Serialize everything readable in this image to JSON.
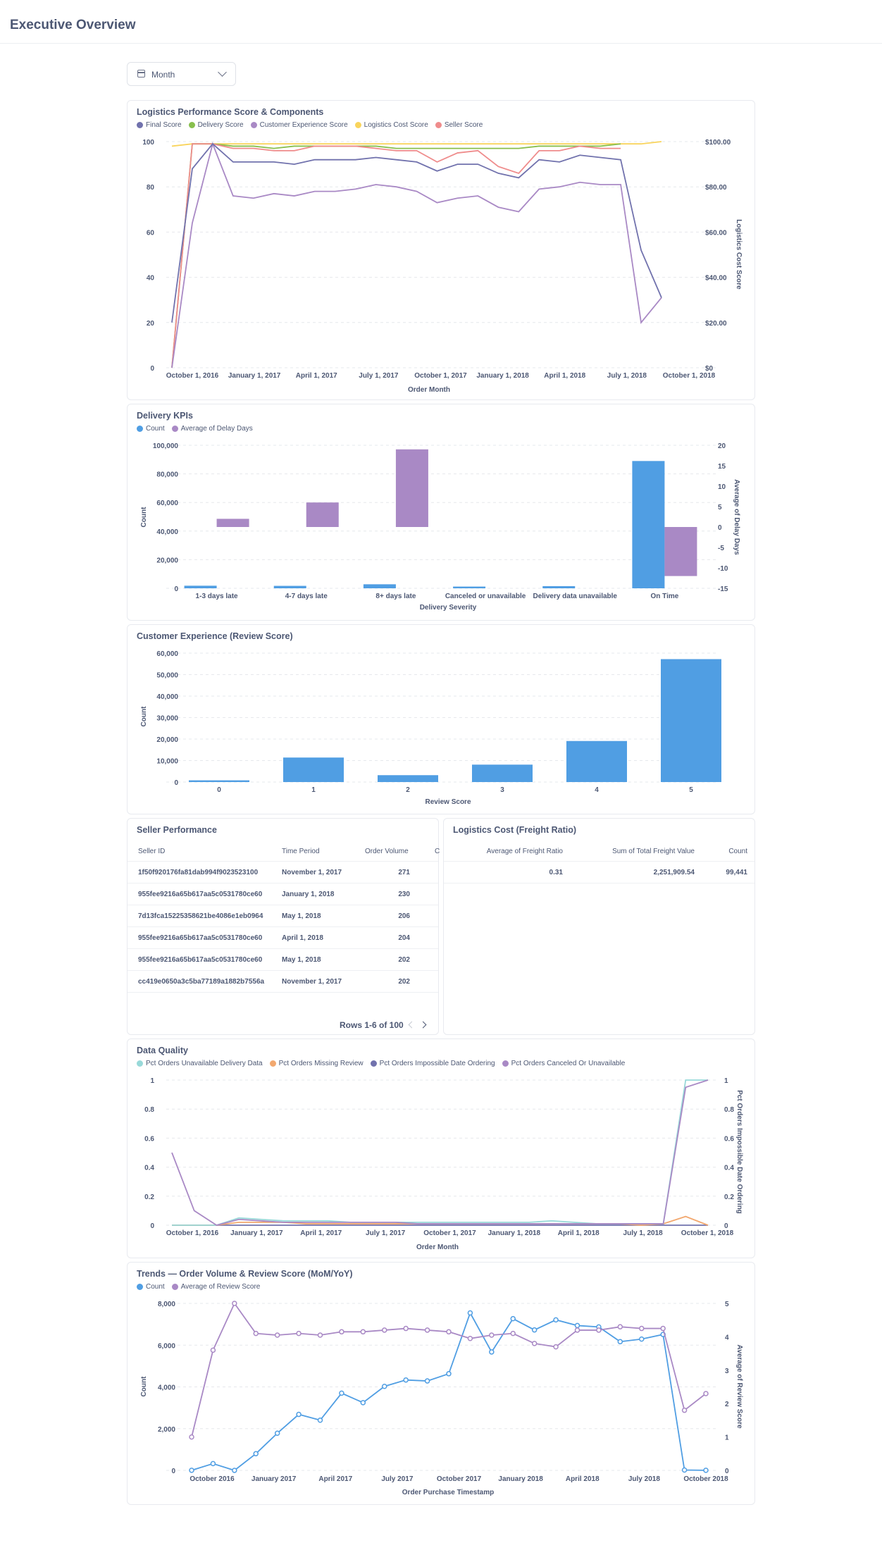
{
  "page": {
    "title": "Executive Overview"
  },
  "filter": {
    "label": "Month",
    "icon": "calendar-icon"
  },
  "colors": {
    "purple": "#a989c5",
    "navy": "#7172ad",
    "green": "#88bf4d",
    "yellow": "#f9d45c",
    "orange": "#ef8c8c",
    "blue": "#509ee3",
    "teal": "#98d9d9",
    "peach": "#f2a86f"
  },
  "logistics": {
    "title": "Logistics Performance Score & Components",
    "legend": [
      "Final Score",
      "Delivery Score",
      "Customer Experience Score",
      "Logistics Cost Score",
      "Seller Score"
    ],
    "x_label": "Order Month",
    "y_right_label": "Logistics Cost Score",
    "y_left_ticks": [
      "0",
      "20",
      "40",
      "60",
      "80",
      "100"
    ],
    "y_right_ticks": [
      "$0",
      "$20.00",
      "$40.00",
      "$60.00",
      "$80.00",
      "$100.00"
    ],
    "x_ticks": [
      "October 1, 2016",
      "January 1, 2017",
      "April 1, 2017",
      "July 1, 2017",
      "October 1, 2017",
      "January 1, 2018",
      "April 1, 2018",
      "July 1, 2018",
      "October 1, 2018"
    ]
  },
  "delivery": {
    "title": "Delivery KPIs",
    "legend": [
      "Count",
      "Average of Delay Days"
    ],
    "x_label": "Delivery Severity",
    "y_left_label": "Count",
    "y_right_label": "Average of Delay Days",
    "y_left_ticks": [
      "0",
      "20,000",
      "40,000",
      "60,000",
      "80,000",
      "100,000"
    ],
    "y_right_ticks": [
      "-15",
      "-10",
      "-5",
      "0",
      "5",
      "10",
      "15",
      "20"
    ]
  },
  "review": {
    "title": "Customer Experience (Review Score)",
    "x_label": "Review Score",
    "y_left_label": "Count",
    "y_left_ticks": [
      "0",
      "10,000",
      "20,000",
      "30,000",
      "40,000",
      "50,000",
      "60,000"
    ]
  },
  "seller": {
    "title": "Seller Performance",
    "columns": [
      "Seller ID",
      "Time Period",
      "Order Volume",
      "C"
    ],
    "rows": [
      [
        "1f50f920176fa81dab994f9023523100",
        "November 1, 2017",
        "271"
      ],
      [
        "955fee9216a65b617aa5c0531780ce60",
        "January 1, 2018",
        "230"
      ],
      [
        "7d13fca15225358621be4086e1eb0964",
        "May 1, 2018",
        "206"
      ],
      [
        "955fee9216a65b617aa5c0531780ce60",
        "April 1, 2018",
        "204"
      ],
      [
        "955fee9216a65b617aa5c0531780ce60",
        "May 1, 2018",
        "202"
      ],
      [
        "cc419e0650a3c5ba77189a1882b7556a",
        "November 1, 2017",
        "202"
      ]
    ],
    "pagination": "Rows 1-6 of 100"
  },
  "freight": {
    "title": "Logistics Cost (Freight Ratio)",
    "columns": [
      "Average of Freight Ratio",
      "Sum of Total Freight Value",
      "Count"
    ],
    "row": [
      "0.31",
      "2,251,909.54",
      "99,441"
    ]
  },
  "quality": {
    "title": "Data Quality",
    "legend": [
      "Pct Orders Unavailable Delivery Data",
      "Pct Orders Missing Review",
      "Pct Orders Impossible Date Ordering",
      "Pct Orders Canceled Or Unavailable"
    ],
    "x_label": "Order Month",
    "y_right_label": "Pct Orders Impossible Date Ordering",
    "y_left_ticks": [
      "0",
      "0.2",
      "0.4",
      "0.6",
      "0.8",
      "1"
    ],
    "y_right_ticks": [
      "0",
      "0.2",
      "0.4",
      "0.6",
      "0.8",
      "1"
    ],
    "x_ticks": [
      "October 1, 2016",
      "January 1, 2017",
      "April 1, 2017",
      "July 1, 2017",
      "October 1, 2017",
      "January 1, 2018",
      "April 1, 2018",
      "July 1, 2018",
      "October 1, 2018"
    ]
  },
  "trends": {
    "title": "Trends — Order Volume & Review Score (MoM/YoY)",
    "legend": [
      "Count",
      "Average of Review Score"
    ],
    "x_label": "Order Purchase Timestamp",
    "y_left_label": "Count",
    "y_right_label": "Average of Review Score",
    "y_left_ticks": [
      "0",
      "2,000",
      "4,000",
      "6,000",
      "8,000"
    ],
    "y_right_ticks": [
      "0",
      "1",
      "2",
      "3",
      "4",
      "5"
    ],
    "x_ticks": [
      "October 2016",
      "January 2017",
      "April 2017",
      "July 2017",
      "October 2017",
      "January 2018",
      "April 2018",
      "July 2018",
      "October 2018"
    ]
  },
  "chart_data": [
    {
      "type": "line",
      "title": "Logistics Performance Score & Components",
      "xlabel": "Order Month",
      "ylabel_right": "Logistics Cost Score",
      "x": [
        "2016-09",
        "2016-10",
        "2016-12",
        "2017-01",
        "2017-02",
        "2017-03",
        "2017-04",
        "2017-05",
        "2017-06",
        "2017-07",
        "2017-08",
        "2017-09",
        "2017-10",
        "2017-11",
        "2017-12",
        "2018-01",
        "2018-02",
        "2018-03",
        "2018-04",
        "2018-05",
        "2018-06",
        "2018-07",
        "2018-08",
        "2018-09",
        "2018-10"
      ],
      "ylim": [
        0,
        100
      ],
      "series": [
        {
          "name": "Final Score",
          "values": [
            20,
            88,
            99,
            91,
            91,
            91,
            90,
            92,
            92,
            92,
            93,
            92,
            91,
            87,
            90,
            90,
            86,
            84,
            92,
            91,
            94,
            93,
            92,
            52,
            31
          ]
        },
        {
          "name": "Delivery Score",
          "values": [
            0,
            99,
            99,
            98,
            98,
            97,
            98,
            98,
            98,
            98,
            98,
            97,
            97,
            97,
            97,
            97,
            97,
            97,
            98,
            98,
            98,
            98,
            99,
            null,
            null
          ]
        },
        {
          "name": "Customer Experience Score",
          "values": [
            0,
            64,
            99,
            76,
            75,
            77,
            76,
            78,
            78,
            79,
            81,
            80,
            78,
            73,
            75,
            76,
            71,
            69,
            79,
            80,
            82,
            81,
            81,
            20,
            31
          ]
        },
        {
          "name": "Logistics Cost Score",
          "values": [
            98,
            99,
            99,
            99,
            99,
            99,
            99,
            99,
            99,
            99,
            99,
            99,
            99,
            99,
            99,
            99,
            99,
            99,
            99,
            99,
            99,
            99,
            99,
            99,
            100
          ]
        },
        {
          "name": "Seller Score",
          "values": [
            0,
            99,
            99,
            97,
            97,
            96,
            96,
            98,
            98,
            98,
            97,
            96,
            96,
            91,
            95,
            96,
            89,
            86,
            96,
            96,
            98,
            97,
            97,
            null,
            null
          ]
        }
      ]
    },
    {
      "type": "bar",
      "title": "Delivery KPIs",
      "xlabel": "Delivery Severity",
      "categories": [
        "1-3 days late",
        "4-7 days late",
        "8+ days late",
        "Canceled or unavailable",
        "Delivery data unavailable",
        "On Time"
      ],
      "series": [
        {
          "name": "Count",
          "values": [
            1800,
            1700,
            2800,
            1200,
            1500,
            89000
          ]
        },
        {
          "name": "Average of Delay Days",
          "values": [
            2,
            6,
            19,
            0,
            0,
            -12
          ]
        }
      ],
      "ylim": [
        0,
        100000
      ],
      "ylim_right": [
        -15,
        20
      ]
    },
    {
      "type": "bar",
      "title": "Customer Experience (Review Score)",
      "xlabel": "Review Score",
      "ylabel": "Count",
      "categories": [
        "0",
        "1",
        "2",
        "3",
        "4",
        "5"
      ],
      "values": [
        800,
        11400,
        3200,
        8100,
        19100,
        57200
      ],
      "ylim": [
        0,
        60000
      ]
    },
    {
      "type": "line",
      "title": "Data Quality",
      "xlabel": "Order Month",
      "ylabel_right": "Pct Orders Impossible Date Ordering",
      "x": [
        "2016-09",
        "2016-10",
        "2016-12",
        "2017-01",
        "2017-02",
        "2017-03",
        "2017-04",
        "2017-05",
        "2017-06",
        "2017-07",
        "2017-08",
        "2017-09",
        "2017-10",
        "2017-11",
        "2017-12",
        "2018-01",
        "2018-02",
        "2018-03",
        "2018-04",
        "2018-05",
        "2018-06",
        "2018-07",
        "2018-08",
        "2018-09",
        "2018-10"
      ],
      "ylim": [
        0,
        1
      ],
      "series": [
        {
          "name": "Pct Orders Unavailable Delivery Data",
          "values": [
            0,
            0,
            0,
            0.05,
            0.04,
            0.03,
            0.03,
            0.03,
            0.02,
            0.02,
            0.02,
            0.02,
            0.02,
            0.02,
            0.02,
            0.02,
            0.02,
            0.03,
            0.02,
            0.01,
            0.01,
            0.01,
            0.01,
            1,
            1
          ]
        },
        {
          "name": "Pct Orders Missing Review",
          "values": [
            0,
            0,
            0,
            0.02,
            0.02,
            0.02,
            0.01,
            0.01,
            0.01,
            0.01,
            0.01,
            0.01,
            0.01,
            0.01,
            0.01,
            0.01,
            0.01,
            0.01,
            0.01,
            0.01,
            0.01,
            0,
            0.01,
            0.06,
            0
          ]
        },
        {
          "name": "Pct Orders Impossible Date Ordering",
          "values": [
            0,
            0,
            0,
            0,
            0,
            0,
            0,
            0,
            0,
            0,
            0,
            0,
            0,
            0,
            0,
            0,
            0,
            0,
            0,
            0,
            0,
            0,
            0,
            0,
            0
          ]
        },
        {
          "name": "Pct Orders Canceled Or Unavailable",
          "values": [
            0.5,
            0.1,
            0,
            0.04,
            0.03,
            0.02,
            0.02,
            0.02,
            0.02,
            0.02,
            0.02,
            0.01,
            0.01,
            0.01,
            0.01,
            0.01,
            0.01,
            0.01,
            0.01,
            0.01,
            0.01,
            0.01,
            0.01,
            0.95,
            1
          ]
        }
      ]
    },
    {
      "type": "line",
      "title": "Trends — Order Volume & Review Score (MoM/YoY)",
      "xlabel": "Order Purchase Timestamp",
      "x": [
        "2016-09",
        "2016-10",
        "2016-12",
        "2017-01",
        "2017-02",
        "2017-03",
        "2017-04",
        "2017-05",
        "2017-06",
        "2017-07",
        "2017-08",
        "2017-09",
        "2017-10",
        "2017-11",
        "2017-12",
        "2018-01",
        "2018-02",
        "2018-03",
        "2018-04",
        "2018-05",
        "2018-06",
        "2018-07",
        "2018-08",
        "2018-09",
        "2018-10"
      ],
      "series": [
        {
          "name": "Count",
          "axis": "left",
          "values": [
            4,
            324,
            1,
            800,
            1780,
            2682,
            2404,
            3700,
            3245,
            4026,
            4331,
            4285,
            4631,
            7544,
            5673,
            7269,
            6728,
            7211,
            6939,
            6873,
            6167,
            6292,
            6512,
            16,
            4
          ]
        },
        {
          "name": "Average of Review Score",
          "axis": "right",
          "values": [
            1.0,
            3.6,
            5.0,
            4.1,
            4.05,
            4.1,
            4.05,
            4.15,
            4.15,
            4.2,
            4.25,
            4.2,
            4.15,
            3.95,
            4.05,
            4.1,
            3.8,
            3.7,
            4.2,
            4.2,
            4.3,
            4.25,
            4.25,
            1.8,
            2.3
          ]
        }
      ],
      "ylim": [
        0,
        8000
      ],
      "ylim_right": [
        0,
        5
      ]
    }
  ]
}
